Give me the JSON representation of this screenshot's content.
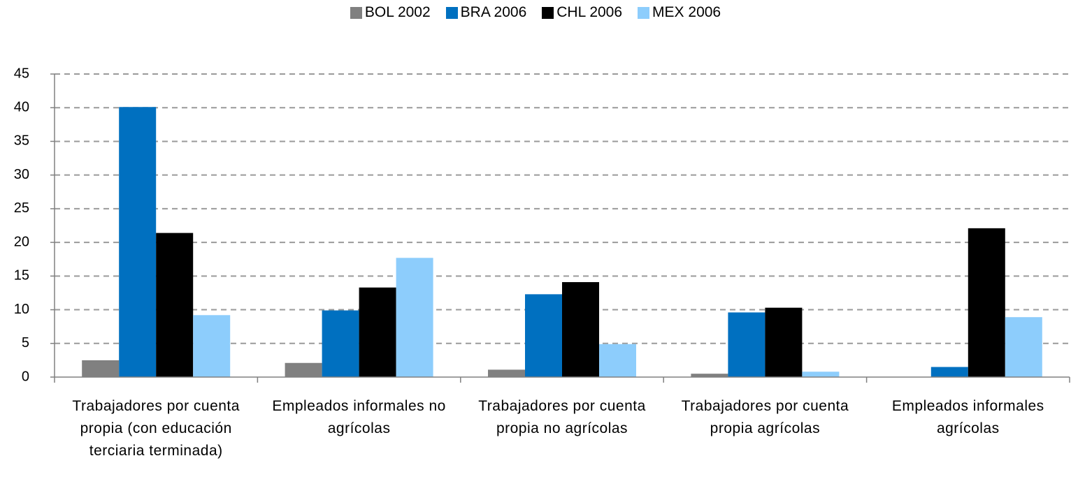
{
  "chart_data": {
    "type": "bar",
    "categories": [
      "Trabajadores por cuenta propia (con educación terciaria terminada)",
      "Empleados informales no agrícolas",
      "Trabajadores por cuenta propia no agrícolas",
      "Trabajadores por cuenta propia agrícolas",
      "Empleados informales agrícolas"
    ],
    "series": [
      {
        "name": "BOL 2002",
        "color": "#808080",
        "values": [
          2.5,
          2.1,
          1.1,
          0.5,
          0
        ]
      },
      {
        "name": "BRA 2006",
        "color": "#0070c0",
        "values": [
          40.1,
          9.9,
          12.3,
          9.6,
          1.5
        ]
      },
      {
        "name": "CHL 2006",
        "color": "#000000",
        "values": [
          21.4,
          13.3,
          14.1,
          10.3,
          22.1
        ]
      },
      {
        "name": "MEX 2006",
        "color": "#8dcdfc",
        "values": [
          9.2,
          17.7,
          4.9,
          0.8,
          8.9
        ]
      }
    ],
    "ylim": [
      0,
      45
    ],
    "yticks": [
      0,
      5,
      10,
      15,
      20,
      25,
      30,
      35,
      40,
      45
    ],
    "grid": true,
    "legend": "top"
  }
}
